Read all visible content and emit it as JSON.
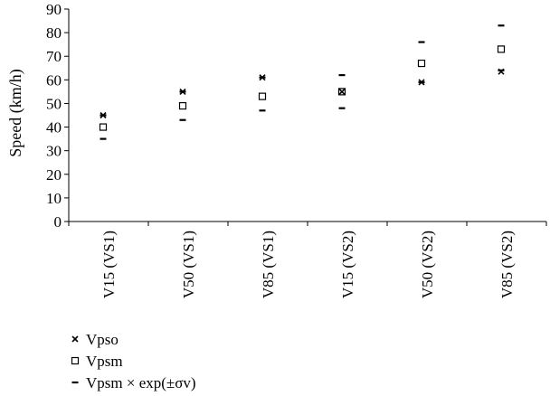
{
  "chart_data": {
    "type": "scatter",
    "ylabel": "Speed (km/h)",
    "xlabel": "",
    "ylim": [
      0,
      90
    ],
    "yticks": [
      0,
      10,
      20,
      30,
      40,
      50,
      60,
      70,
      80,
      90
    ],
    "categories": [
      "V15 (VS1)",
      "V50 (VS1)",
      "V85 (VS1)",
      "V15 (VS2)",
      "V50 (VS2)",
      "V85 (VS2)"
    ],
    "grid": false,
    "legend_position": "bottom-left",
    "series": [
      {
        "name": "Vpso",
        "marker": "cross",
        "values": [
          45,
          55,
          61,
          55,
          59,
          63.5
        ]
      },
      {
        "name": "Vpsm",
        "marker": "square",
        "values": [
          40,
          49,
          53,
          55,
          67,
          73
        ]
      },
      {
        "name": "Vpsm × exp(±σv)",
        "marker": "dash",
        "values_low": [
          35,
          43,
          47,
          48,
          59,
          64
        ],
        "values_high": [
          45,
          55,
          61,
          62,
          76,
          83
        ]
      }
    ]
  }
}
